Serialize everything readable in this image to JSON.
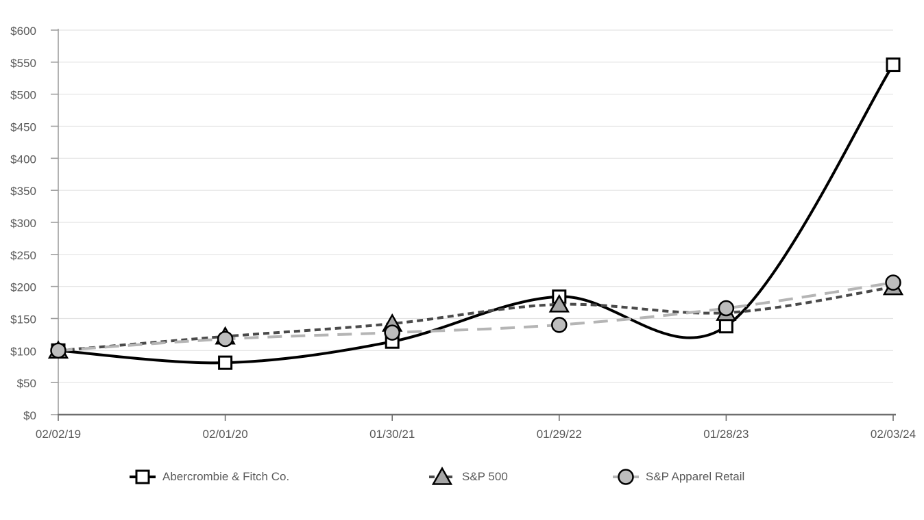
{
  "chart_data": {
    "type": "line",
    "title": "",
    "xlabel": "",
    "ylabel": "",
    "x_labels": [
      "02/02/19",
      "02/01/20",
      "01/30/21",
      "01/29/22",
      "01/28/23",
      "02/03/24"
    ],
    "y_tick_labels": [
      "$0",
      "$50",
      "$100",
      "$150",
      "$200",
      "$250",
      "$300",
      "$350",
      "$400",
      "$450",
      "$500",
      "$550",
      "$600"
    ],
    "ylim": [
      0,
      600
    ],
    "y_tick_step": 50,
    "y_tick_prefix": "$",
    "grid": true,
    "legend_position": "bottom",
    "series": [
      {
        "name": "Abercrombie & Fitch Co.",
        "values": [
          100,
          81,
          114,
          184,
          138,
          546
        ],
        "line": "solid",
        "marker": "square",
        "color": "#000000",
        "marker_fill": "#ffffff"
      },
      {
        "name": "S&P 500",
        "values": [
          100,
          122,
          142,
          172,
          159,
          199
        ],
        "line": "short-dash",
        "marker": "triangle",
        "color": "#4a4a4a",
        "marker_fill": "#a6a6a6"
      },
      {
        "name": "S&P Apparel Retail",
        "values": [
          100,
          118,
          128,
          140,
          166,
          206
        ],
        "line": "long-dash",
        "marker": "circle",
        "color": "#b5b5b5",
        "marker_fill": "#bdbdbd"
      }
    ],
    "style": {
      "background": "#ffffff",
      "grid_color": "#e3e3e3",
      "y_axis_color": "#9e9e9e",
      "x_axis_color": "#6e6e6e",
      "tick_label_color": "#595959"
    }
  }
}
